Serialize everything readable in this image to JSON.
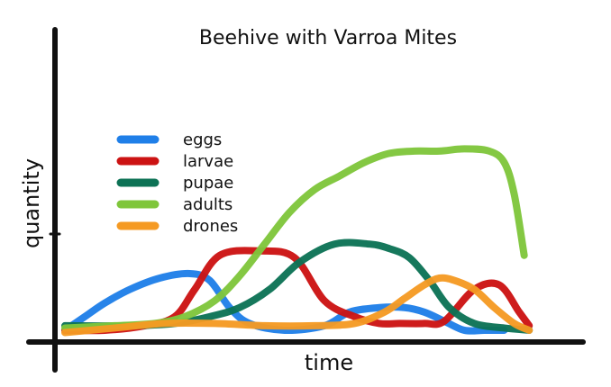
{
  "chart_data": {
    "type": "line",
    "title": "Beehive with Varroa Mites",
    "xlabel": "time",
    "ylabel": "quantity",
    "xlim": [
      0,
      100
    ],
    "ylim": [
      0,
      100
    ],
    "x_ticks_visible": false,
    "y_ticks_visible": false,
    "grid": false,
    "legend_position": "upper-left",
    "series": [
      {
        "name": "eggs",
        "color": "#1f7fe8",
        "x": [
          0,
          4,
          8,
          13,
          19,
          25,
          29,
          33,
          37,
          44,
          52,
          57,
          63,
          68,
          72,
          76,
          80,
          84,
          88
        ],
        "y": [
          2,
          8,
          14,
          20,
          25,
          27,
          24,
          12,
          5,
          2,
          4,
          10,
          12,
          12,
          10,
          6,
          2,
          2,
          2
        ]
      },
      {
        "name": "larvae",
        "color": "#cc1313",
        "x": [
          0,
          8,
          16,
          22,
          26,
          31,
          39,
          46,
          52,
          58,
          63,
          67,
          72,
          76,
          82,
          87,
          91,
          93
        ],
        "y": [
          2,
          2,
          4,
          8,
          20,
          35,
          37,
          34,
          15,
          8,
          5,
          5,
          5,
          6,
          20,
          22,
          10,
          4
        ]
      },
      {
        "name": "pupae",
        "color": "#0d7255",
        "x": [
          0,
          13,
          22,
          29,
          35,
          41,
          47,
          54,
          61,
          65,
          69,
          73,
          77,
          82,
          88,
          93
        ],
        "y": [
          4,
          4,
          5,
          8,
          12,
          20,
          32,
          40,
          40,
          38,
          34,
          24,
          12,
          5,
          3,
          2
        ]
      },
      {
        "name": "adults",
        "color": "#7fc63b",
        "x": [
          0,
          10,
          18,
          24,
          30,
          35,
          40,
          45,
          50,
          55,
          60,
          65,
          70,
          75,
          80,
          85,
          88,
          90,
          92
        ],
        "y": [
          3,
          4,
          5,
          8,
          15,
          26,
          40,
          54,
          64,
          70,
          76,
          80,
          81,
          81,
          82,
          81,
          76,
          62,
          35
        ]
      },
      {
        "name": "drones",
        "color": "#f59a23",
        "x": [
          0,
          10,
          20,
          30,
          40,
          50,
          58,
          64,
          68,
          72,
          75,
          78,
          82,
          86,
          90,
          93
        ],
        "y": [
          1,
          3,
          5,
          5,
          4,
          4,
          5,
          10,
          16,
          22,
          25,
          24,
          20,
          12,
          5,
          2
        ]
      }
    ]
  }
}
